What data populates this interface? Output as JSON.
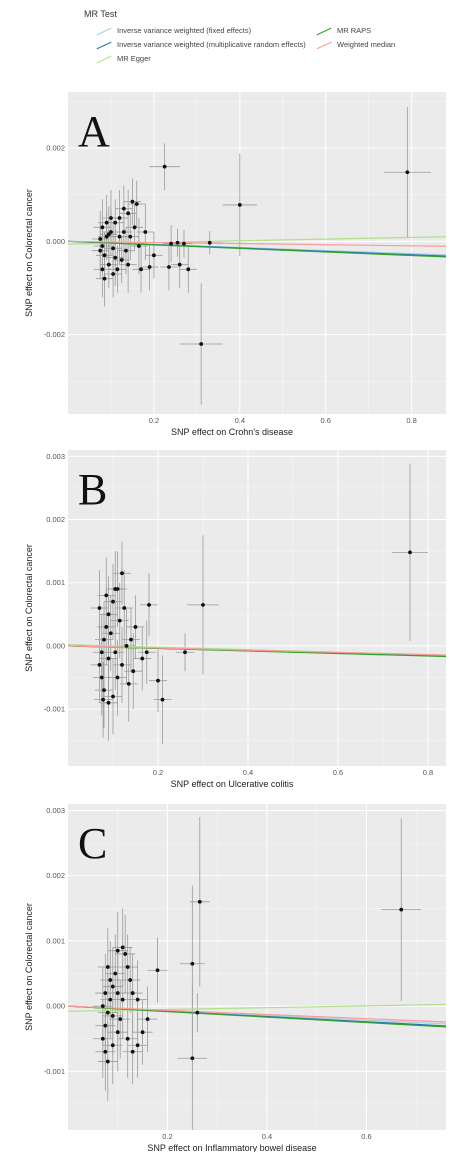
{
  "legend": {
    "title": "MR Test",
    "items": [
      {
        "label": "Inverse variance weighted (fixed effects)",
        "color": "#a6cee3"
      },
      {
        "label": "Inverse variance weighted (multiplicative random effects)",
        "color": "#1f78b4"
      },
      {
        "label": "MR Egger",
        "color": "#b2df8a"
      },
      {
        "label": "MR RAPS",
        "color": "#33a02c"
      },
      {
        "label": "Weighted median",
        "color": "#fb9a99"
      }
    ]
  },
  "chart_data": [
    {
      "type": "scatter",
      "panel_label": "A",
      "xlabel": "SNP effect on Crohn's disease",
      "ylabel": "SNP effect on Colorectal cancer",
      "xlim": [
        0,
        0.88
      ],
      "ylim": [
        -0.0037,
        0.0032
      ],
      "xticks": [
        0.2,
        0.4,
        0.6,
        0.8
      ],
      "yticks": [
        -0.002,
        0.0,
        0.002
      ],
      "xtick_labels": [
        "0.2",
        "0.4",
        "0.6",
        "0.8"
      ],
      "ytick_labels": [
        "-0.002",
        "0.000",
        "0.002"
      ],
      "grid": true,
      "legend_position": "top",
      "lines": [
        {
          "method": "Inverse variance weighted (fixed effects)",
          "color": "#a6cee3",
          "slope": -0.00033
        },
        {
          "method": "Inverse variance weighted (multiplicative random effects)",
          "color": "#1f78b4",
          "slope": -0.00036
        },
        {
          "method": "MR Egger",
          "color": "#b2df8a",
          "intercept": -6e-05,
          "slope": 0.00018
        },
        {
          "method": "MR RAPS",
          "color": "#33a02c",
          "slope": -0.00038
        },
        {
          "method": "Weighted median",
          "color": "#fb9a99",
          "slope": -0.00012
        }
      ],
      "points": [
        {
          "x": 0.225,
          "y": 0.0016,
          "xerr": 0.035,
          "yerr": 0.0005
        },
        {
          "x": 0.79,
          "y": 0.00148,
          "xerr": 0.055,
          "yerr": 0.0014
        },
        {
          "x": 0.4,
          "y": 0.00078,
          "xerr": 0.04,
          "yerr": 0.0011
        },
        {
          "x": 0.31,
          "y": -0.0022,
          "xerr": 0.05,
          "yerr": 0.0013
        },
        {
          "x": 0.33,
          "y": -3e-05,
          "xerr": 0.03,
          "yerr": 0.00025
        },
        {
          "x": 0.27,
          "y": -5e-05,
          "xerr": 0.02,
          "yerr": 0.0003
        },
        {
          "x": 0.255,
          "y": -3e-05,
          "xerr": 0.02,
          "yerr": 0.0003
        },
        {
          "x": 0.24,
          "y": -5e-05,
          "xerr": 0.02,
          "yerr": 0.0004
        },
        {
          "x": 0.2,
          "y": -0.0003,
          "xerr": 0.02,
          "yerr": 0.0005
        },
        {
          "x": 0.235,
          "y": -0.00055,
          "xerr": 0.02,
          "yerr": 0.0005
        },
        {
          "x": 0.26,
          "y": -0.0005,
          "xerr": 0.02,
          "yerr": 0.0005
        },
        {
          "x": 0.28,
          "y": -0.0006,
          "xerr": 0.02,
          "yerr": 0.0005
        },
        {
          "x": 0.19,
          "y": -0.00055,
          "xerr": 0.02,
          "yerr": 0.0005
        },
        {
          "x": 0.17,
          "y": -0.0006,
          "xerr": 0.02,
          "yerr": 0.0005
        },
        {
          "x": 0.16,
          "y": 0.0008,
          "xerr": 0.02,
          "yerr": 0.0005
        },
        {
          "x": 0.15,
          "y": 0.00085,
          "xerr": 0.02,
          "yerr": 0.0005
        },
        {
          "x": 0.14,
          "y": 0.0006,
          "xerr": 0.02,
          "yerr": 0.0005
        },
        {
          "x": 0.13,
          "y": 0.0007,
          "xerr": 0.02,
          "yerr": 0.0005
        },
        {
          "x": 0.12,
          "y": 0.0005,
          "xerr": 0.02,
          "yerr": 0.0006
        },
        {
          "x": 0.11,
          "y": 0.0004,
          "xerr": 0.02,
          "yerr": 0.0005
        },
        {
          "x": 0.1,
          "y": 0.0002,
          "xerr": 0.02,
          "yerr": 0.0005
        },
        {
          "x": 0.09,
          "y": 0.0001,
          "xerr": 0.02,
          "yerr": 0.0005
        },
        {
          "x": 0.08,
          "y": -0.0001,
          "xerr": 0.02,
          "yerr": 0.0005
        },
        {
          "x": 0.085,
          "y": -0.0003,
          "xerr": 0.02,
          "yerr": 0.0005
        },
        {
          "x": 0.095,
          "y": -0.0005,
          "xerr": 0.02,
          "yerr": 0.0005
        },
        {
          "x": 0.105,
          "y": -0.0007,
          "xerr": 0.02,
          "yerr": 0.0005
        },
        {
          "x": 0.115,
          "y": -0.0006,
          "xerr": 0.02,
          "yerr": 0.0005
        },
        {
          "x": 0.125,
          "y": -0.0004,
          "xerr": 0.02,
          "yerr": 0.0005
        },
        {
          "x": 0.135,
          "y": -0.0002,
          "xerr": 0.02,
          "yerr": 0.0005
        },
        {
          "x": 0.145,
          "y": 0.0001,
          "xerr": 0.02,
          "yerr": 0.0005
        },
        {
          "x": 0.155,
          "y": 0.0003,
          "xerr": 0.02,
          "yerr": 0.0005
        },
        {
          "x": 0.1,
          "y": 0.0005,
          "xerr": 0.02,
          "yerr": 0.0006
        },
        {
          "x": 0.09,
          "y": 0.0004,
          "xerr": 0.02,
          "yerr": 0.0006
        },
        {
          "x": 0.08,
          "y": 0.0003,
          "xerr": 0.02,
          "yerr": 0.0006
        },
        {
          "x": 0.075,
          "y": 5e-05,
          "xerr": 0.02,
          "yerr": 0.0006
        },
        {
          "x": 0.075,
          "y": -0.0002,
          "xerr": 0.02,
          "yerr": 0.0006
        },
        {
          "x": 0.08,
          "y": -0.0006,
          "xerr": 0.02,
          "yerr": 0.0006
        },
        {
          "x": 0.085,
          "y": -0.0008,
          "xerr": 0.02,
          "yerr": 0.0006
        },
        {
          "x": 0.11,
          "y": -0.00035,
          "xerr": 0.02,
          "yerr": 0.0006
        },
        {
          "x": 0.12,
          "y": 0.0001,
          "xerr": 0.02,
          "yerr": 0.0006
        },
        {
          "x": 0.13,
          "y": 0.0002,
          "xerr": 0.02,
          "yerr": 0.0006
        },
        {
          "x": 0.095,
          "y": 0.00015,
          "xerr": 0.02,
          "yerr": 0.0006
        },
        {
          "x": 0.105,
          "y": -0.00015,
          "xerr": 0.02,
          "yerr": 0.0006
        },
        {
          "x": 0.14,
          "y": -0.0005,
          "xerr": 0.02,
          "yerr": 0.0006
        },
        {
          "x": 0.165,
          "y": -0.0001,
          "xerr": 0.02,
          "yerr": 0.0006
        },
        {
          "x": 0.18,
          "y": 0.0002,
          "xerr": 0.02,
          "yerr": 0.0006
        }
      ]
    },
    {
      "type": "scatter",
      "panel_label": "B",
      "xlabel": "SNP effect on  Ulcerative colitis",
      "ylabel": "SNP effect on Colorectal cancer",
      "xlim": [
        0,
        0.84
      ],
      "ylim": [
        -0.0019,
        0.0031
      ],
      "xticks": [
        0.2,
        0.4,
        0.6,
        0.8
      ],
      "yticks": [
        -0.001,
        0.0,
        0.001,
        0.002,
        0.003
      ],
      "xtick_labels": [
        "0.2",
        "0.4",
        "0.6",
        "0.8"
      ],
      "ytick_labels": [
        "-0.001",
        "0.000",
        "0.001",
        "0.002",
        "0.003"
      ],
      "grid": true,
      "legend_position": "top",
      "lines": [
        {
          "method": "Inverse variance weighted (fixed effects)",
          "color": "#a6cee3",
          "slope": -0.00018
        },
        {
          "method": "Inverse variance weighted (multiplicative random effects)",
          "color": "#1f78b4",
          "slope": -0.00019
        },
        {
          "method": "MR Egger",
          "color": "#b2df8a",
          "intercept": 2e-05,
          "slope": -0.0002
        },
        {
          "method": "MR RAPS",
          "color": "#33a02c",
          "slope": -0.0002
        },
        {
          "method": "Weighted median",
          "color": "#fb9a99",
          "slope": -0.00017
        }
      ],
      "points": [
        {
          "x": 0.76,
          "y": 0.00148,
          "xerr": 0.04,
          "yerr": 0.0014
        },
        {
          "x": 0.3,
          "y": 0.00065,
          "xerr": 0.035,
          "yerr": 0.0011
        },
        {
          "x": 0.26,
          "y": -0.0001,
          "xerr": 0.02,
          "yerr": 0.0003
        },
        {
          "x": 0.21,
          "y": -0.00085,
          "xerr": 0.02,
          "yerr": 0.0007
        },
        {
          "x": 0.2,
          "y": -0.00055,
          "xerr": 0.02,
          "yerr": 0.0005
        },
        {
          "x": 0.18,
          "y": 0.00065,
          "xerr": 0.02,
          "yerr": 0.0005
        },
        {
          "x": 0.175,
          "y": -0.0001,
          "xerr": 0.02,
          "yerr": 0.0005
        },
        {
          "x": 0.165,
          "y": -0.0002,
          "xerr": 0.02,
          "yerr": 0.0005
        },
        {
          "x": 0.15,
          "y": 0.0003,
          "xerr": 0.02,
          "yerr": 0.0005
        },
        {
          "x": 0.14,
          "y": 0.0001,
          "xerr": 0.02,
          "yerr": 0.0005
        },
        {
          "x": 0.12,
          "y": 0.00115,
          "xerr": 0.02,
          "yerr": 0.0005
        },
        {
          "x": 0.11,
          "y": 0.0009,
          "xerr": 0.02,
          "yerr": 0.0006
        },
        {
          "x": 0.1,
          "y": 0.0007,
          "xerr": 0.02,
          "yerr": 0.0006
        },
        {
          "x": 0.09,
          "y": 0.0005,
          "xerr": 0.02,
          "yerr": 0.0006
        },
        {
          "x": 0.085,
          "y": 0.0003,
          "xerr": 0.02,
          "yerr": 0.0006
        },
        {
          "x": 0.08,
          "y": 0.0001,
          "xerr": 0.02,
          "yerr": 0.0006
        },
        {
          "x": 0.075,
          "y": -0.0001,
          "xerr": 0.02,
          "yerr": 0.0006
        },
        {
          "x": 0.07,
          "y": -0.0003,
          "xerr": 0.02,
          "yerr": 0.0006
        },
        {
          "x": 0.075,
          "y": -0.0005,
          "xerr": 0.02,
          "yerr": 0.0006
        },
        {
          "x": 0.08,
          "y": -0.0007,
          "xerr": 0.02,
          "yerr": 0.0006
        },
        {
          "x": 0.09,
          "y": -0.0009,
          "xerr": 0.02,
          "yerr": 0.0006
        },
        {
          "x": 0.1,
          "y": -0.0008,
          "xerr": 0.02,
          "yerr": 0.0006
        },
        {
          "x": 0.11,
          "y": -0.0005,
          "xerr": 0.02,
          "yerr": 0.0006
        },
        {
          "x": 0.12,
          "y": -0.0003,
          "xerr": 0.02,
          "yerr": 0.0006
        },
        {
          "x": 0.13,
          "y": 0.0,
          "xerr": 0.02,
          "yerr": 0.0006
        },
        {
          "x": 0.095,
          "y": 0.0002,
          "xerr": 0.02,
          "yerr": 0.0006
        },
        {
          "x": 0.105,
          "y": -0.0001,
          "xerr": 0.02,
          "yerr": 0.0006
        },
        {
          "x": 0.115,
          "y": 0.0004,
          "xerr": 0.02,
          "yerr": 0.0006
        },
        {
          "x": 0.07,
          "y": 0.0006,
          "xerr": 0.02,
          "yerr": 0.0006
        },
        {
          "x": 0.085,
          "y": 0.0008,
          "xerr": 0.02,
          "yerr": 0.0006
        },
        {
          "x": 0.09,
          "y": -0.0002,
          "xerr": 0.02,
          "yerr": 0.0006
        },
        {
          "x": 0.135,
          "y": -0.0006,
          "xerr": 0.02,
          "yerr": 0.0006
        },
        {
          "x": 0.125,
          "y": 0.0006,
          "xerr": 0.02,
          "yerr": 0.0006
        },
        {
          "x": 0.145,
          "y": -0.0004,
          "xerr": 0.02,
          "yerr": 0.0006
        },
        {
          "x": 0.105,
          "y": 0.0009,
          "xerr": 0.02,
          "yerr": 0.0006
        },
        {
          "x": 0.078,
          "y": -0.00085,
          "xerr": 0.02,
          "yerr": 0.0006
        }
      ]
    },
    {
      "type": "scatter",
      "panel_label": "C",
      "xlabel": "SNP effect on  Inflammatory bowel disease",
      "ylabel": "SNP effect on Colorectal cancer",
      "xlim": [
        0,
        0.76
      ],
      "ylim": [
        -0.0019,
        0.0031
      ],
      "xticks": [
        0.2,
        0.4,
        0.6
      ],
      "yticks": [
        -0.001,
        0.0,
        0.001,
        0.002,
        0.003
      ],
      "xtick_labels": [
        "0.2",
        "0.4",
        "0.6"
      ],
      "ytick_labels": [
        "-0.001",
        "0.000",
        "0.001",
        "0.002",
        "0.003"
      ],
      "grid": true,
      "legend_position": "top",
      "lines": [
        {
          "method": "Inverse variance weighted (fixed effects)",
          "color": "#a6cee3",
          "slope": -0.00036
        },
        {
          "method": "Inverse variance weighted (multiplicative random effects)",
          "color": "#1f78b4",
          "slope": -0.0004
        },
        {
          "method": "MR Egger",
          "color": "#b2df8a",
          "intercept": -8e-05,
          "slope": 0.00014
        },
        {
          "method": "MR RAPS",
          "color": "#33a02c",
          "slope": -0.00042
        },
        {
          "method": "Weighted median",
          "color": "#fb9a99",
          "slope": -0.00032
        }
      ],
      "points": [
        {
          "x": 0.67,
          "y": 0.00148,
          "xerr": 0.04,
          "yerr": 0.0014
        },
        {
          "x": 0.265,
          "y": 0.0016,
          "xerr": 0.02,
          "yerr": 0.0013
        },
        {
          "x": 0.25,
          "y": 0.00065,
          "xerr": 0.025,
          "yerr": 0.0012
        },
        {
          "x": 0.25,
          "y": -0.0008,
          "xerr": 0.03,
          "yerr": 0.0011
        },
        {
          "x": 0.26,
          "y": -0.0001,
          "xerr": 0.02,
          "yerr": 0.0003
        },
        {
          "x": 0.18,
          "y": 0.00055,
          "xerr": 0.02,
          "yerr": 0.0005
        },
        {
          "x": 0.16,
          "y": -0.0002,
          "xerr": 0.02,
          "yerr": 0.0005
        },
        {
          "x": 0.15,
          "y": -0.0004,
          "xerr": 0.02,
          "yerr": 0.0005
        },
        {
          "x": 0.14,
          "y": -0.0006,
          "xerr": 0.02,
          "yerr": 0.0005
        },
        {
          "x": 0.13,
          "y": -0.0007,
          "xerr": 0.02,
          "yerr": 0.0005
        },
        {
          "x": 0.125,
          "y": 0.0004,
          "xerr": 0.02,
          "yerr": 0.0005
        },
        {
          "x": 0.12,
          "y": 0.0006,
          "xerr": 0.02,
          "yerr": 0.0005
        },
        {
          "x": 0.115,
          "y": 0.0008,
          "xerr": 0.02,
          "yerr": 0.0006
        },
        {
          "x": 0.11,
          "y": 0.0009,
          "xerr": 0.02,
          "yerr": 0.0006
        },
        {
          "x": 0.1,
          "y": 0.00085,
          "xerr": 0.02,
          "yerr": 0.0006
        },
        {
          "x": 0.095,
          "y": 0.0005,
          "xerr": 0.02,
          "yerr": 0.0006
        },
        {
          "x": 0.09,
          "y": 0.0003,
          "xerr": 0.02,
          "yerr": 0.0006
        },
        {
          "x": 0.085,
          "y": 0.0001,
          "xerr": 0.02,
          "yerr": 0.0006
        },
        {
          "x": 0.08,
          "y": -0.0001,
          "xerr": 0.02,
          "yerr": 0.0006
        },
        {
          "x": 0.075,
          "y": -0.0003,
          "xerr": 0.02,
          "yerr": 0.0006
        },
        {
          "x": 0.07,
          "y": -0.0005,
          "xerr": 0.02,
          "yerr": 0.0006
        },
        {
          "x": 0.075,
          "y": -0.0007,
          "xerr": 0.02,
          "yerr": 0.0006
        },
        {
          "x": 0.08,
          "y": -0.00085,
          "xerr": 0.02,
          "yerr": 0.0006
        },
        {
          "x": 0.09,
          "y": -0.0006,
          "xerr": 0.02,
          "yerr": 0.0006
        },
        {
          "x": 0.1,
          "y": -0.0004,
          "xerr": 0.02,
          "yerr": 0.0006
        },
        {
          "x": 0.105,
          "y": -0.0002,
          "xerr": 0.02,
          "yerr": 0.0006
        },
        {
          "x": 0.11,
          "y": 0.0001,
          "xerr": 0.02,
          "yerr": 0.0006
        },
        {
          "x": 0.085,
          "y": 0.0004,
          "xerr": 0.02,
          "yerr": 0.0006
        },
        {
          "x": 0.075,
          "y": 0.0002,
          "xerr": 0.02,
          "yerr": 0.0006
        },
        {
          "x": 0.07,
          "y": 0.0,
          "xerr": 0.02,
          "yerr": 0.0006
        },
        {
          "x": 0.09,
          "y": -0.00015,
          "xerr": 0.02,
          "yerr": 0.0006
        },
        {
          "x": 0.12,
          "y": -0.0005,
          "xerr": 0.02,
          "yerr": 0.0006
        },
        {
          "x": 0.13,
          "y": 0.0002,
          "xerr": 0.02,
          "yerr": 0.0006
        },
        {
          "x": 0.1,
          "y": 0.0002,
          "xerr": 0.02,
          "yerr": 0.0006
        },
        {
          "x": 0.14,
          "y": 0.0001,
          "xerr": 0.02,
          "yerr": 0.0006
        },
        {
          "x": 0.08,
          "y": 0.0006,
          "xerr": 0.02,
          "yerr": 0.0006
        }
      ]
    }
  ]
}
